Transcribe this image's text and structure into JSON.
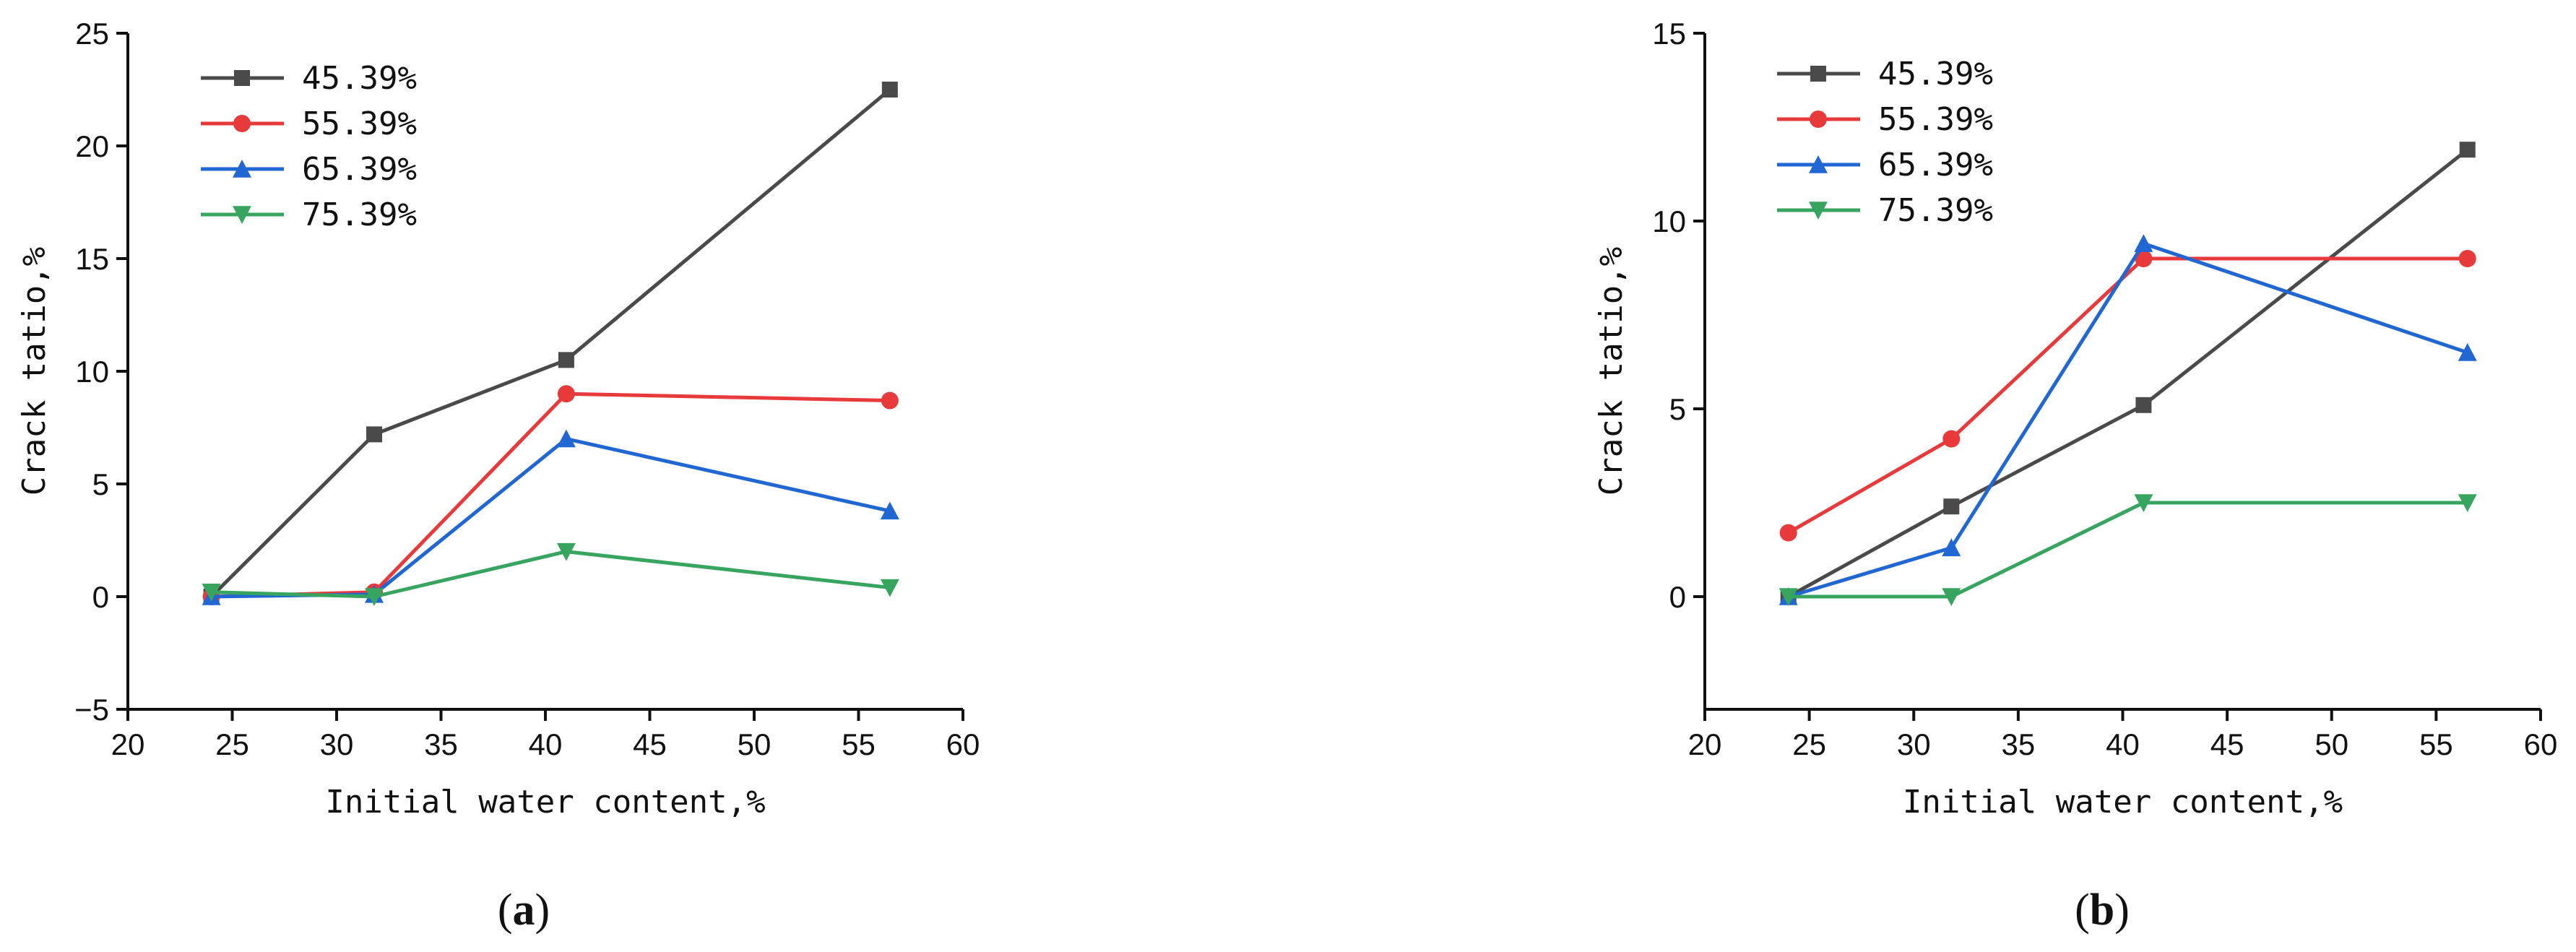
{
  "series_styles": [
    {
      "color": "#4a4a4a",
      "marker": "square"
    },
    {
      "color": "#e8393b",
      "marker": "circle"
    },
    {
      "color": "#2167d3",
      "marker": "triangle-up"
    },
    {
      "color": "#37a55f",
      "marker": "triangle-down"
    }
  ],
  "chart_data": [
    {
      "type": "line",
      "panel_label": "a",
      "xlabel": "Initial water content,%",
      "ylabel": "Crack tatio,%",
      "xlim": [
        20,
        60
      ],
      "ylim": [
        -5,
        25
      ],
      "xticks": [
        20,
        25,
        30,
        35,
        40,
        45,
        50,
        55,
        60
      ],
      "yticks": [
        -5,
        0,
        5,
        10,
        15,
        20,
        25
      ],
      "x": [
        24.0,
        31.8,
        41.0,
        56.5
      ],
      "legend_position": "top-left",
      "series": [
        {
          "name": "45.39%",
          "values": [
            0.0,
            7.2,
            10.5,
            22.5
          ]
        },
        {
          "name": "55.39%",
          "values": [
            0.0,
            0.2,
            9.0,
            8.7
          ]
        },
        {
          "name": "65.39%",
          "values": [
            0.0,
            0.1,
            7.0,
            3.8
          ]
        },
        {
          "name": "75.39%",
          "values": [
            0.2,
            0.0,
            2.0,
            0.4
          ]
        }
      ]
    },
    {
      "type": "line",
      "panel_label": "b",
      "xlabel": "Initial water content,%",
      "ylabel": "Crack tatio,%",
      "xlim": [
        20,
        60
      ],
      "ylim": [
        -3,
        15
      ],
      "xticks": [
        20,
        25,
        30,
        35,
        40,
        45,
        50,
        55,
        60
      ],
      "yticks": [
        0,
        5,
        10,
        15
      ],
      "x": [
        24.0,
        31.8,
        41.0,
        56.5
      ],
      "legend_position": "top-left",
      "series": [
        {
          "name": "45.39%",
          "values": [
            0.0,
            2.4,
            5.1,
            11.9
          ]
        },
        {
          "name": "55.39%",
          "values": [
            1.7,
            4.2,
            9.0,
            9.0
          ]
        },
        {
          "name": "65.39%",
          "values": [
            0.0,
            1.3,
            9.4,
            6.5
          ]
        },
        {
          "name": "75.39%",
          "values": [
            0.0,
            0.0,
            2.5,
            2.5
          ]
        }
      ]
    }
  ]
}
